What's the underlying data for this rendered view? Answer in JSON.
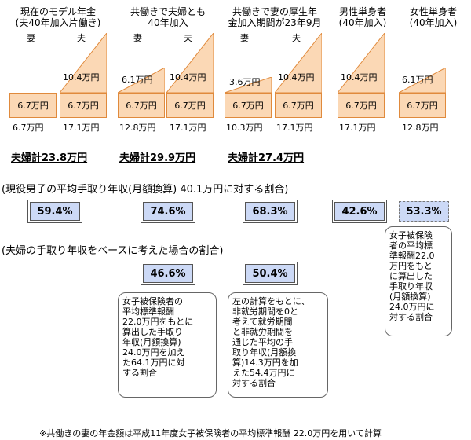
{
  "groups": [
    {
      "header": "現在のモデル年金\n(夫40年加入片働き)",
      "wife_label": "妻",
      "husband_label": "夫",
      "wife_box": "6.7万円",
      "husband_box": "6.7万円",
      "wife_tri": "",
      "husband_tri": "10.4万円",
      "wife_total": "6.7万円",
      "husband_total": "17.1万円",
      "couple_total": "夫婦計23.8万円"
    },
    {
      "header": "共働きで夫婦とも\n40年加入",
      "wife_label": "妻",
      "husband_label": "夫",
      "wife_box": "6.7万円",
      "husband_box": "6.7万円",
      "wife_tri": "6.1万円",
      "husband_tri": "10.4万円",
      "wife_total": "12.8万円",
      "husband_total": "17.1万円",
      "couple_total": "夫婦計29.9万円"
    },
    {
      "header": "共働きで妻の厚生年\n金加入期間が23年9月",
      "wife_label": "妻",
      "husband_label": "夫",
      "wife_box": "6.7万円",
      "husband_box": "6.7万円",
      "wife_tri": "3.6万円",
      "husband_tri": "10.4万円",
      "wife_total": "10.3万円",
      "husband_total": "17.1万円",
      "couple_total": "夫婦計27.4万円"
    },
    {
      "header": "男性単身者\n(40年加入)",
      "box": "6.7万円",
      "tri": "10.4万円",
      "total": "17.1万円"
    },
    {
      "header": "女性単身者\n(40年加入)",
      "box": "6.7万円",
      "tri": "6.1万円",
      "total": "12.8万円"
    }
  ],
  "section1": "(現役男子の平均手取り年収(月額換算) 40.1万円に対する割合)",
  "ratios1": [
    "59.4%",
    "74.6%",
    "68.3%",
    "42.6%",
    "53.3%"
  ],
  "section2": "(夫婦の手取り年収をベースに考えた場合の割合)",
  "ratios2": [
    "46.6%",
    "50.4%"
  ],
  "note_a": "女子被保険者の\n平均標準報酬\n22.0万円をもとに\n算出した手取り\n年収(月額換算)\n24.0万円を加え\nた64.1万円に対\nする割合",
  "note_b": "左の計算をもとに、\n非就労期間を0と\n考えて就労期間\nと非就労期間を\n通じた平均の手\n取り年収(月額換\n算)14.3万円を加\nえた54.4万円に\n対する割合",
  "note_c": "女子被保険\n者の平均標\n準報酬22.0\n万円をもと\nに算出した\n手取り年収\n(月額換算)\n24.0万円に\n対する割合",
  "footnote": "※共働きの妻の年金額は平成11年度女子被保険者の平均標準報酬 22.0万円を用いて計算",
  "colors": {
    "box_fill": "#fbd8b5",
    "box_border": "#e08a3c",
    "ratio_fill": "#ccd9f6"
  }
}
